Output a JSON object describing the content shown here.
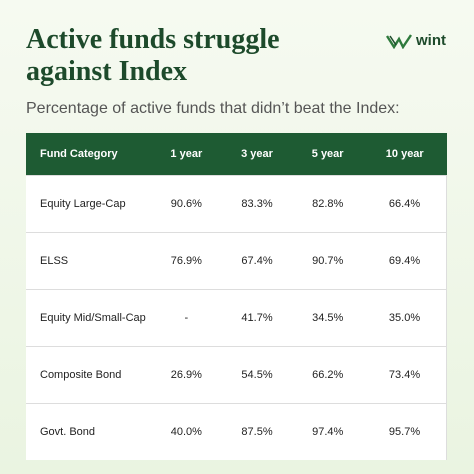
{
  "header": {
    "title": "Active funds struggle against Index",
    "logo": "wint"
  },
  "subtitle": "Percentage of active funds that didn’t beat the Index:",
  "table": {
    "columns": [
      "Fund Category",
      "1 year",
      "3 year",
      "5 year",
      "10 year"
    ],
    "rows": [
      [
        "Equity Large-Cap",
        "90.6%",
        "83.3%",
        "82.8%",
        "66.4%"
      ],
      [
        "ELSS",
        "76.9%",
        "67.4%",
        "90.7%",
        "69.4%"
      ],
      [
        "Equity Mid/Small-Cap",
        "-",
        "41.7%",
        "34.5%",
        "35.0%"
      ],
      [
        "Composite Bond",
        "26.9%",
        "54.5%",
        "66.2%",
        "73.4%"
      ],
      [
        "Govt. Bond",
        "40.0%",
        "87.5%",
        "97.4%",
        "95.7%"
      ]
    ]
  }
}
